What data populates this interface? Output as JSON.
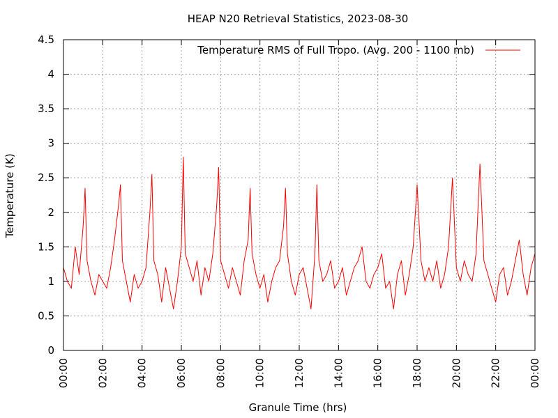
{
  "chart_data": {
    "type": "line",
    "title": "HEAP N20 Retrieval Statistics, 2023-08-30",
    "xlabel": "Granule Time (hrs)",
    "ylabel": "Temperature (K)",
    "xlim": [
      0,
      24
    ],
    "ylim": [
      0,
      4.5
    ],
    "xticks": [
      0,
      2,
      4,
      6,
      8,
      10,
      12,
      14,
      16,
      18,
      20,
      22,
      24
    ],
    "xtick_labels": [
      "00:00",
      "02:00",
      "04:00",
      "06:00",
      "08:00",
      "10:00",
      "12:00",
      "14:00",
      "16:00",
      "18:00",
      "20:00",
      "22:00",
      "00:00"
    ],
    "yticks": [
      0,
      0.5,
      1,
      1.5,
      2,
      2.5,
      3,
      3.5,
      4,
      4.5
    ],
    "ytick_labels": [
      "0",
      "0.5",
      "1",
      "1.5",
      "2",
      "2.5",
      "3",
      "3.5",
      "4",
      "4.5"
    ],
    "grid": true,
    "legend_position": "top-right",
    "series": [
      {
        "name": "Temperature RMS of Full Tropo. (Avg. 200 - 1100 mb)",
        "color": "#ff0000",
        "x": [
          0.0,
          0.2,
          0.4,
          0.6,
          0.8,
          1.0,
          1.1,
          1.2,
          1.4,
          1.6,
          1.8,
          2.0,
          2.2,
          2.4,
          2.6,
          2.8,
          2.9,
          3.0,
          3.2,
          3.4,
          3.6,
          3.8,
          4.0,
          4.2,
          4.4,
          4.5,
          4.6,
          4.8,
          5.0,
          5.2,
          5.4,
          5.6,
          5.8,
          6.0,
          6.1,
          6.2,
          6.4,
          6.6,
          6.8,
          7.0,
          7.2,
          7.4,
          7.6,
          7.8,
          7.9,
          8.0,
          8.2,
          8.4,
          8.6,
          8.8,
          9.0,
          9.2,
          9.4,
          9.5,
          9.6,
          9.8,
          10.0,
          10.2,
          10.4,
          10.6,
          10.8,
          11.0,
          11.2,
          11.3,
          11.4,
          11.6,
          11.8,
          12.0,
          12.2,
          12.4,
          12.6,
          12.8,
          12.9,
          13.0,
          13.2,
          13.4,
          13.6,
          13.8,
          14.0,
          14.2,
          14.4,
          14.6,
          14.8,
          15.0,
          15.2,
          15.4,
          15.6,
          15.8,
          16.0,
          16.2,
          16.4,
          16.6,
          16.8,
          17.0,
          17.2,
          17.4,
          17.6,
          17.8,
          18.0,
          18.2,
          18.4,
          18.6,
          18.8,
          19.0,
          19.2,
          19.4,
          19.6,
          19.8,
          20.0,
          20.2,
          20.4,
          20.6,
          20.8,
          21.0,
          21.2,
          21.3,
          21.4,
          21.6,
          21.8,
          22.0,
          22.2,
          22.4,
          22.6,
          22.8,
          23.0,
          23.2,
          23.4,
          23.6,
          23.8,
          24.0
        ],
        "y": [
          1.2,
          1.0,
          0.9,
          1.5,
          1.1,
          1.8,
          2.35,
          1.3,
          1.0,
          0.8,
          1.1,
          1.0,
          0.9,
          1.2,
          1.6,
          2.1,
          2.4,
          1.3,
          1.0,
          0.7,
          1.1,
          0.9,
          1.0,
          1.2,
          2.0,
          2.55,
          1.3,
          1.1,
          0.7,
          1.2,
          0.9,
          0.6,
          1.0,
          1.5,
          2.8,
          1.4,
          1.2,
          1.0,
          1.3,
          0.8,
          1.2,
          1.0,
          1.4,
          2.1,
          2.65,
          1.3,
          1.1,
          0.9,
          1.2,
          1.0,
          0.8,
          1.3,
          1.6,
          2.35,
          1.4,
          1.1,
          0.9,
          1.1,
          0.7,
          1.0,
          1.2,
          1.3,
          1.8,
          2.35,
          1.4,
          1.0,
          0.8,
          1.1,
          1.2,
          0.9,
          0.6,
          1.4,
          2.4,
          1.3,
          1.0,
          1.1,
          1.3,
          0.9,
          1.0,
          1.2,
          0.8,
          1.0,
          1.2,
          1.3,
          1.5,
          1.0,
          0.9,
          1.1,
          1.2,
          1.4,
          0.9,
          1.0,
          0.6,
          1.1,
          1.3,
          0.8,
          1.1,
          1.5,
          2.4,
          1.3,
          1.0,
          1.2,
          1.0,
          1.3,
          0.9,
          1.1,
          1.5,
          2.5,
          1.2,
          1.0,
          1.3,
          1.1,
          1.0,
          1.4,
          2.7,
          2.0,
          1.3,
          1.1,
          0.9,
          0.7,
          1.1,
          1.2,
          0.8,
          1.0,
          1.3,
          1.6,
          1.1,
          0.8,
          1.2,
          1.4
        ]
      }
    ]
  }
}
